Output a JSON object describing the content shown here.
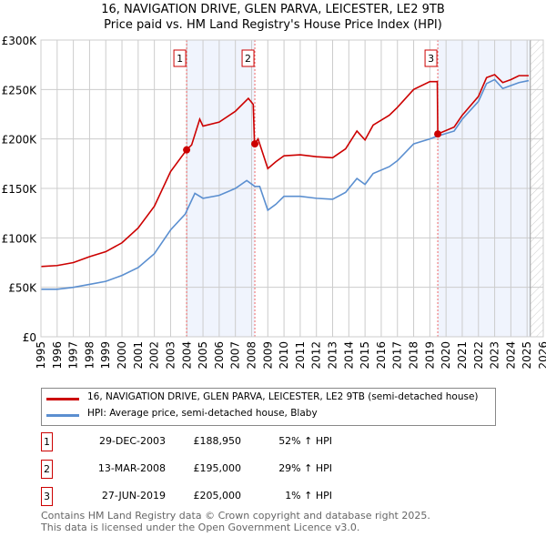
{
  "chart_data": {
    "type": "line",
    "title": "16, NAVIGATION DRIVE, GLEN PARVA, LEICESTER, LE2 9TB",
    "subtitle": "Price paid vs. HM Land Registry's House Price Index (HPI)",
    "xlim": [
      1995,
      2026
    ],
    "ylim": [
      0,
      300000
    ],
    "x_ticks": [
      "1995",
      "1996",
      "1997",
      "1998",
      "1999",
      "2000",
      "2001",
      "2002",
      "2003",
      "2004",
      "2005",
      "2006",
      "2007",
      "2008",
      "2009",
      "2010",
      "2011",
      "2012",
      "2013",
      "2014",
      "2015",
      "2016",
      "2017",
      "2018",
      "2019",
      "2020",
      "2021",
      "2022",
      "2023",
      "2024",
      "2025",
      "2026"
    ],
    "y_ticks": [
      {
        "v": 0,
        "label": "£0"
      },
      {
        "v": 50000,
        "label": "£50K"
      },
      {
        "v": 100000,
        "label": "£100K"
      },
      {
        "v": 150000,
        "label": "£150K"
      },
      {
        "v": 200000,
        "label": "£200K"
      },
      {
        "v": 250000,
        "label": "£250K"
      },
      {
        "v": 300000,
        "label": "£300K"
      }
    ],
    "grid": true,
    "data_end": 2025.2,
    "series": [
      {
        "name": "16, NAVIGATION DRIVE, GLEN PARVA, LEICESTER, LE2 9TB (semi-detached house)",
        "color": "#cc0000",
        "points": [
          [
            1995,
            71
          ],
          [
            1996,
            72
          ],
          [
            1997,
            75
          ],
          [
            1998,
            81
          ],
          [
            1999,
            86
          ],
          [
            2000,
            95
          ],
          [
            2001,
            110
          ],
          [
            2002,
            132
          ],
          [
            2003,
            167
          ],
          [
            2003.99,
            189
          ],
          [
            2004.3,
            194
          ],
          [
            2004.8,
            220
          ],
          [
            2005,
            213
          ],
          [
            2006,
            217
          ],
          [
            2007,
            228
          ],
          [
            2007.8,
            241
          ],
          [
            2008.1,
            235
          ],
          [
            2008.18,
            195
          ],
          [
            2008.4,
            200
          ],
          [
            2009,
            170
          ],
          [
            2009.5,
            177
          ],
          [
            2010,
            183
          ],
          [
            2011,
            184
          ],
          [
            2012,
            182
          ],
          [
            2013,
            181
          ],
          [
            2013.8,
            190
          ],
          [
            2014.5,
            208
          ],
          [
            2015,
            199
          ],
          [
            2015.5,
            214
          ],
          [
            2016.5,
            224
          ],
          [
            2017,
            232
          ],
          [
            2018,
            250
          ],
          [
            2019,
            258
          ],
          [
            2019.46,
            258
          ],
          [
            2019.49,
            205
          ],
          [
            2020.5,
            212
          ],
          [
            2021,
            224
          ],
          [
            2022,
            243
          ],
          [
            2022.5,
            262
          ],
          [
            2023,
            265
          ],
          [
            2023.5,
            257
          ],
          [
            2024,
            260
          ],
          [
            2024.5,
            264
          ],
          [
            2025.1,
            264
          ]
        ]
      },
      {
        "name": "HPI: Average price, semi-detached house, Blaby",
        "color": "#5b8fd0",
        "points": [
          [
            1995,
            48
          ],
          [
            1996,
            48
          ],
          [
            1997,
            50
          ],
          [
            1998,
            53
          ],
          [
            1999,
            56
          ],
          [
            2000,
            62
          ],
          [
            2001,
            70
          ],
          [
            2002,
            84
          ],
          [
            2003,
            108
          ],
          [
            2003.9,
            124
          ],
          [
            2004.5,
            145
          ],
          [
            2005,
            140
          ],
          [
            2006,
            143
          ],
          [
            2007,
            150
          ],
          [
            2007.7,
            158
          ],
          [
            2008.2,
            152
          ],
          [
            2008.5,
            152
          ],
          [
            2009,
            128
          ],
          [
            2009.5,
            134
          ],
          [
            2010,
            142
          ],
          [
            2011,
            142
          ],
          [
            2012,
            140
          ],
          [
            2013,
            139
          ],
          [
            2013.8,
            146
          ],
          [
            2014.5,
            160
          ],
          [
            2015,
            154
          ],
          [
            2015.5,
            165
          ],
          [
            2016.5,
            172
          ],
          [
            2017,
            178
          ],
          [
            2018,
            195
          ],
          [
            2019,
            200
          ],
          [
            2019.5,
            203
          ],
          [
            2020.5,
            208
          ],
          [
            2021,
            220
          ],
          [
            2022,
            238
          ],
          [
            2022.5,
            256
          ],
          [
            2023,
            260
          ],
          [
            2023.5,
            251
          ],
          [
            2024,
            254
          ],
          [
            2024.5,
            257
          ],
          [
            2025.1,
            259
          ]
        ]
      }
    ],
    "sales": [
      {
        "id": "1",
        "x": 2003.99,
        "price": 188950,
        "date": "29-DEC-2003",
        "price_label": "£188,950",
        "hpi": "52% ↑ HPI"
      },
      {
        "id": "2",
        "x": 2008.2,
        "price": 195000,
        "date": "13-MAR-2008",
        "price_label": "£195,000",
        "hpi": "29% ↑ HPI"
      },
      {
        "id": "3",
        "x": 2019.49,
        "price": 205000,
        "date": "27-JUN-2019",
        "price_label": "£205,000",
        "hpi": "1% ↑ HPI"
      }
    ]
  },
  "footer": {
    "line1": "Contains HM Land Registry data © Crown copyright and database right 2025.",
    "line2": "This data is licensed under the Open Government Licence v3.0."
  }
}
